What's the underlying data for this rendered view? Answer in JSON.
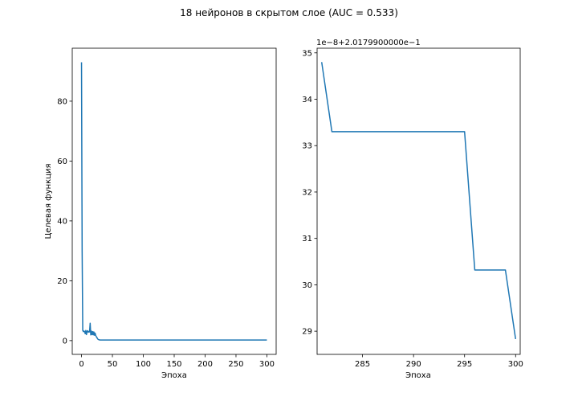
{
  "figure": {
    "suptitle": "18 нейронов в скрытом слое (AUC = 0.533)"
  },
  "chart_data": [
    {
      "type": "line",
      "xlabel": "Эпоха",
      "ylabel": "Целевая функция",
      "xlim": [
        -15,
        315
      ],
      "ylim": [
        -4.6,
        97.7
      ],
      "xticks": [
        0,
        50,
        100,
        150,
        200,
        250,
        300
      ],
      "yticks": [
        0,
        20,
        40,
        60,
        80
      ],
      "series": [
        {
          "color": "#1f77b4",
          "x": [
            0,
            1,
            2,
            3,
            4,
            5,
            6,
            7,
            8,
            9,
            10,
            11,
            12,
            13,
            14,
            15,
            16,
            17,
            18,
            19,
            20,
            21,
            22,
            23,
            24,
            25,
            26,
            27,
            28,
            30,
            32,
            35,
            40,
            50,
            100,
            150,
            200,
            250,
            300
          ],
          "y": [
            93,
            30,
            3.4,
            3.0,
            3.2,
            3.0,
            2.3,
            3.4,
            2.0,
            3.1,
            3.3,
            2.8,
            3.0,
            2.9,
            5.8,
            1.9,
            3.2,
            2.0,
            3.0,
            1.9,
            2.9,
            1.8,
            2.5,
            1.7,
            1.3,
            1.0,
            0.6,
            0.4,
            0.3,
            0.2,
            0.2,
            0.2,
            0.2,
            0.2,
            0.2,
            0.2,
            0.2,
            0.2,
            0.2
          ]
        }
      ]
    },
    {
      "type": "line",
      "xlabel": "Эпоха",
      "ylabel": "",
      "offset_text": "1e−8+2.0179900000e−1",
      "xlim": [
        280.55,
        300.45
      ],
      "ylim": [
        28.5,
        35.1
      ],
      "xticks": [
        285,
        290,
        295,
        300
      ],
      "yticks": [
        29,
        30,
        31,
        32,
        33,
        34,
        35
      ],
      "series": [
        {
          "color": "#1f77b4",
          "x": [
            281,
            282,
            283,
            284,
            285,
            286,
            287,
            288,
            289,
            290,
            291,
            292,
            293,
            294,
            295,
            296,
            297,
            298,
            299,
            300
          ],
          "y": [
            34.8,
            33.3,
            33.3,
            33.3,
            33.3,
            33.3,
            33.3,
            33.3,
            33.3,
            33.3,
            33.3,
            33.3,
            33.3,
            33.3,
            33.3,
            30.32,
            30.32,
            30.32,
            30.32,
            28.83
          ]
        }
      ]
    }
  ]
}
